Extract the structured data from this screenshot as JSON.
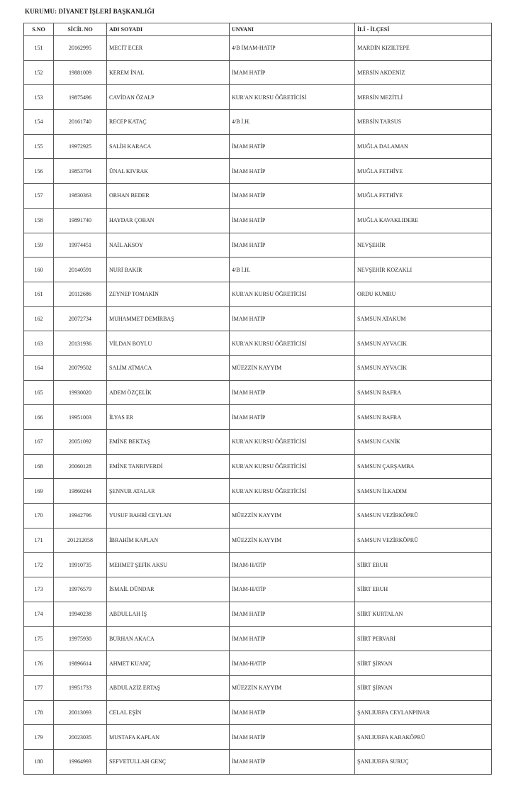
{
  "title": "KURUMU: DİYANET İŞLERİ BAŞKANLIĞI",
  "headers": [
    "S.NO",
    "SİCİL NO",
    "ADI SOYADI",
    "UNVANI",
    "İLİ - İLÇESİ"
  ],
  "rows": [
    [
      "151",
      "20162995",
      "MECİT ECER",
      "4/B İMAM-HATİP",
      "MARDİN KIZILTEPE"
    ],
    [
      "152",
      "19881009",
      "KEREM İNAL",
      "İMAM HATİP",
      "MERSİN AKDENİZ"
    ],
    [
      "153",
      "19875496",
      "CAVİDAN ÖZALP",
      "KUR'AN KURSU ÖĞRETİCİSİ",
      "MERSİN MEZİTLİ"
    ],
    [
      "154",
      "20161740",
      "RECEP KATAÇ",
      "4/B İ.H.",
      "MERSİN TARSUS"
    ],
    [
      "155",
      "19972925",
      "SALİH KARACA",
      "İMAM HATİP",
      "MUĞLA DALAMAN"
    ],
    [
      "156",
      "19853794",
      "ÜNAL KIVRAK",
      "İMAM HATİP",
      "MUĞLA FETHİYE"
    ],
    [
      "157",
      "19830363",
      "ORHAN BEDER",
      "İMAM HATİP",
      "MUĞLA FETHİYE"
    ],
    [
      "158",
      "19891740",
      "HAYDAR ÇOBAN",
      "İMAM HATİP",
      "MUĞLA KAVAKLIDERE"
    ],
    [
      "159",
      "19974451",
      "NAİL AKSOY",
      "İMAM HATİP",
      "NEVŞEHİR"
    ],
    [
      "160",
      "20140591",
      "NURİ BAKIR",
      "4/B İ.H.",
      "NEVŞEHİR KOZAKLI"
    ],
    [
      "161",
      "20112686",
      "ZEYNEP TOMAKİN",
      "KUR'AN KURSU ÖĞRETİCİSİ",
      "ORDU KUMRU"
    ],
    [
      "162",
      "20072734",
      "MUHAMMET DEMİRBAŞ",
      "İMAM HATİP",
      "SAMSUN ATAKUM"
    ],
    [
      "163",
      "20131936",
      "VİLDAN BOYLU",
      "KUR'AN KURSU ÖĞRETİCİSİ",
      "SAMSUN AYVACIK"
    ],
    [
      "164",
      "20079502",
      "SALİM ATMACA",
      "MÜEZZİN KAYYIM",
      "SAMSUN AYVACIK"
    ],
    [
      "165",
      "19930020",
      "ADEM ÖZÇELİK",
      "İMAM HATİP",
      "SAMSUN BAFRA"
    ],
    [
      "166",
      "19951003",
      "İLYAS ER",
      "İMAM HATİP",
      "SAMSUN BAFRA"
    ],
    [
      "167",
      "20051092",
      "EMİNE BEKTAŞ",
      "KUR'AN KURSU ÖĞRETİCİSİ",
      "SAMSUN CANİK"
    ],
    [
      "168",
      "20060128",
      "EMİNE TANRIVERDİ",
      "KUR'AN KURSU ÖĞRETİCİSİ",
      "SAMSUN ÇARŞAMBA"
    ],
    [
      "169",
      "19860244",
      "ŞENNUR ATALAR",
      "KUR'AN KURSU ÖĞRETİCİSİ",
      "SAMSUN İLKADIM"
    ],
    [
      "170",
      "19942796",
      "YUSUF BAHRİ CEYLAN",
      "MÜEZZİN KAYYIM",
      "SAMSUN VEZİRKÖPRÜ"
    ],
    [
      "171",
      "201212058",
      "İBRAHİM KAPLAN",
      "MÜEZZİN KAYYIM",
      "SAMSUN VEZİRKÖPRÜ"
    ],
    [
      "172",
      "19910735",
      "MEHMET ŞEFİK AKSU",
      "İMAM-HATİP",
      "SİİRT ERUH"
    ],
    [
      "173",
      "19976579",
      "İSMAİL DÜNDAR",
      "İMAM-HATİP",
      "SİİRT ERUH"
    ],
    [
      "174",
      "19940238",
      "ABDULLAH İŞ",
      "İMAM HATİP",
      "SİİRT KURTALAN"
    ],
    [
      "175",
      "19975930",
      "BURHAN AKACA",
      "İMAM HATİP",
      "SİİRT PERVARİ"
    ],
    [
      "176",
      "19896614",
      "AHMET KUANÇ",
      "İMAM-HATİP",
      "SİİRT ŞİRVAN"
    ],
    [
      "177",
      "19951733",
      "ABDULAZİZ ERTAŞ",
      "MÜEZZİN KAYYIM",
      "SİİRT ŞİRVAN"
    ],
    [
      "178",
      "20013093",
      "CELAL EŞİN",
      "İMAM HATİP",
      "ŞANLIURFA CEYLANPINAR"
    ],
    [
      "179",
      "20023035",
      "MUSTAFA KAPLAN",
      "İMAM HATİP",
      "ŞANLIURFA KARAKÖPRÜ"
    ],
    [
      "180",
      "19964993",
      "SEFVETULLAH GENÇ",
      "İMAM HATİP",
      "ŞANLIURFA SURUÇ"
    ]
  ]
}
